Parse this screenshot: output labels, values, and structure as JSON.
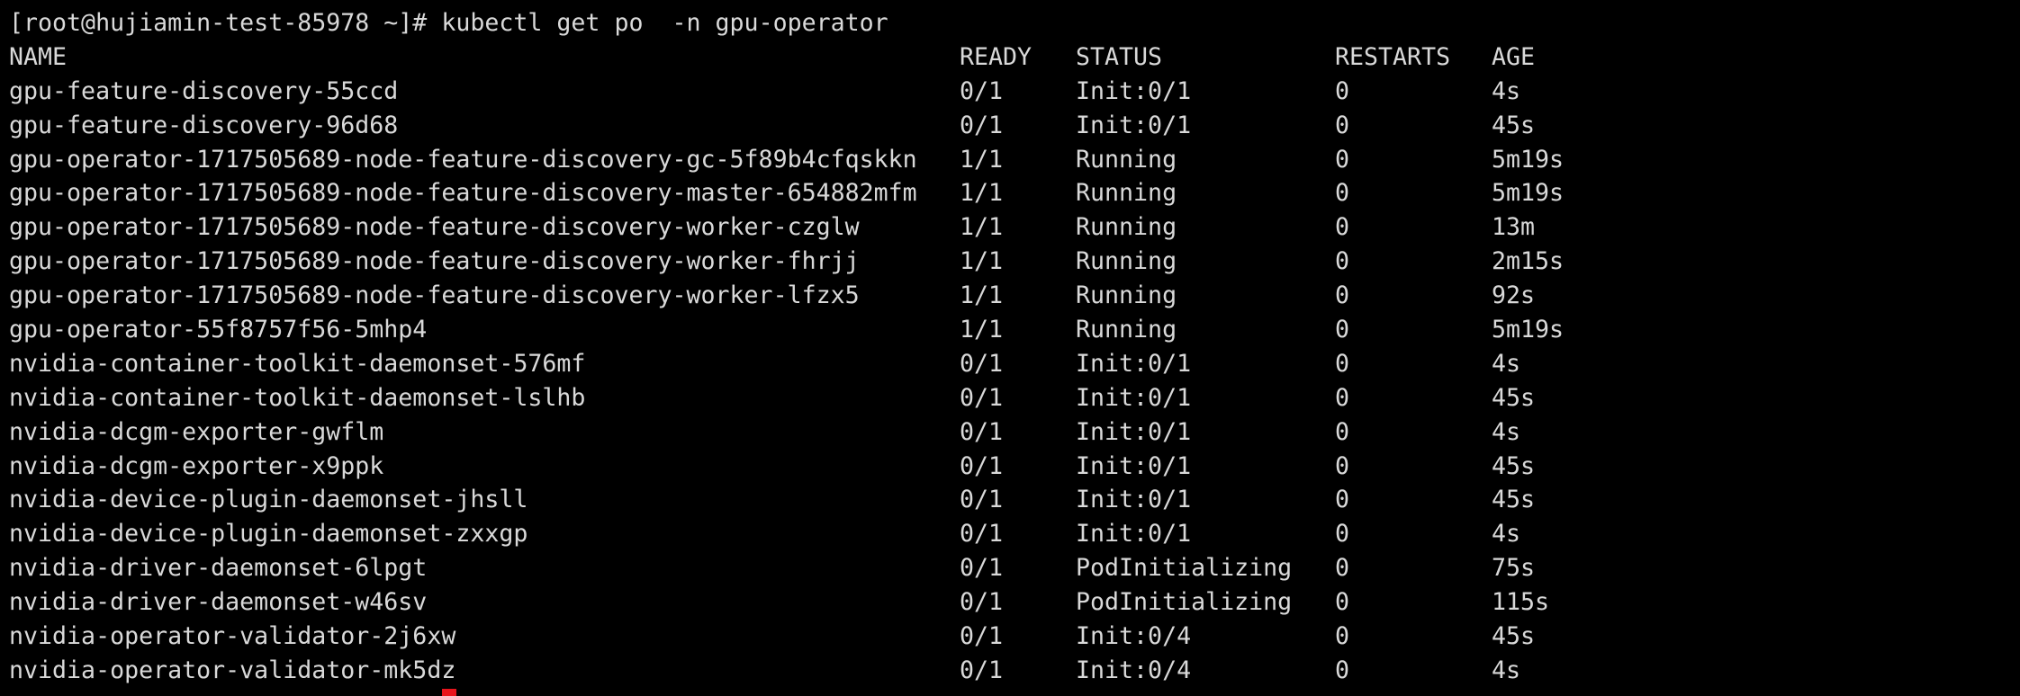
{
  "terminal": {
    "prompt": "[root@hujiamin-test-85978 ~]# ",
    "command": "kubectl get po  -n gpu-operator",
    "cursor_color": "#e8141c",
    "text_color": "#d9d9d9",
    "background_color": "#000000"
  },
  "table": {
    "headers": [
      "NAME",
      "READY",
      "STATUS",
      "RESTARTS",
      "AGE"
    ],
    "rows": [
      [
        "gpu-feature-discovery-55ccd",
        "0/1",
        "Init:0/1",
        "0",
        "4s"
      ],
      [
        "gpu-feature-discovery-96d68",
        "0/1",
        "Init:0/1",
        "0",
        "45s"
      ],
      [
        "gpu-operator-1717505689-node-feature-discovery-gc-5f89b4cfqskkn",
        "1/1",
        "Running",
        "0",
        "5m19s"
      ],
      [
        "gpu-operator-1717505689-node-feature-discovery-master-654882mfm",
        "1/1",
        "Running",
        "0",
        "5m19s"
      ],
      [
        "gpu-operator-1717505689-node-feature-discovery-worker-czglw",
        "1/1",
        "Running",
        "0",
        "13m"
      ],
      [
        "gpu-operator-1717505689-node-feature-discovery-worker-fhrjj",
        "1/1",
        "Running",
        "0",
        "2m15s"
      ],
      [
        "gpu-operator-1717505689-node-feature-discovery-worker-lfzx5",
        "1/1",
        "Running",
        "0",
        "92s"
      ],
      [
        "gpu-operator-55f8757f56-5mhp4",
        "1/1",
        "Running",
        "0",
        "5m19s"
      ],
      [
        "nvidia-container-toolkit-daemonset-576mf",
        "0/1",
        "Init:0/1",
        "0",
        "4s"
      ],
      [
        "nvidia-container-toolkit-daemonset-lslhb",
        "0/1",
        "Init:0/1",
        "0",
        "45s"
      ],
      [
        "nvidia-dcgm-exporter-gwflm",
        "0/1",
        "Init:0/1",
        "0",
        "4s"
      ],
      [
        "nvidia-dcgm-exporter-x9ppk",
        "0/1",
        "Init:0/1",
        "0",
        "45s"
      ],
      [
        "nvidia-device-plugin-daemonset-jhsll",
        "0/1",
        "Init:0/1",
        "0",
        "45s"
      ],
      [
        "nvidia-device-plugin-daemonset-zxxgp",
        "0/1",
        "Init:0/1",
        "0",
        "4s"
      ],
      [
        "nvidia-driver-daemonset-6lpgt",
        "0/1",
        "PodInitializing",
        "0",
        "75s"
      ],
      [
        "nvidia-driver-daemonset-w46sv",
        "0/1",
        "PodInitializing",
        "0",
        "115s"
      ],
      [
        "nvidia-operator-validator-2j6xw",
        "0/1",
        "Init:0/4",
        "0",
        "45s"
      ],
      [
        "nvidia-operator-validator-mk5dz",
        "0/1",
        "Init:0/4",
        "0",
        "4s"
      ]
    ]
  }
}
